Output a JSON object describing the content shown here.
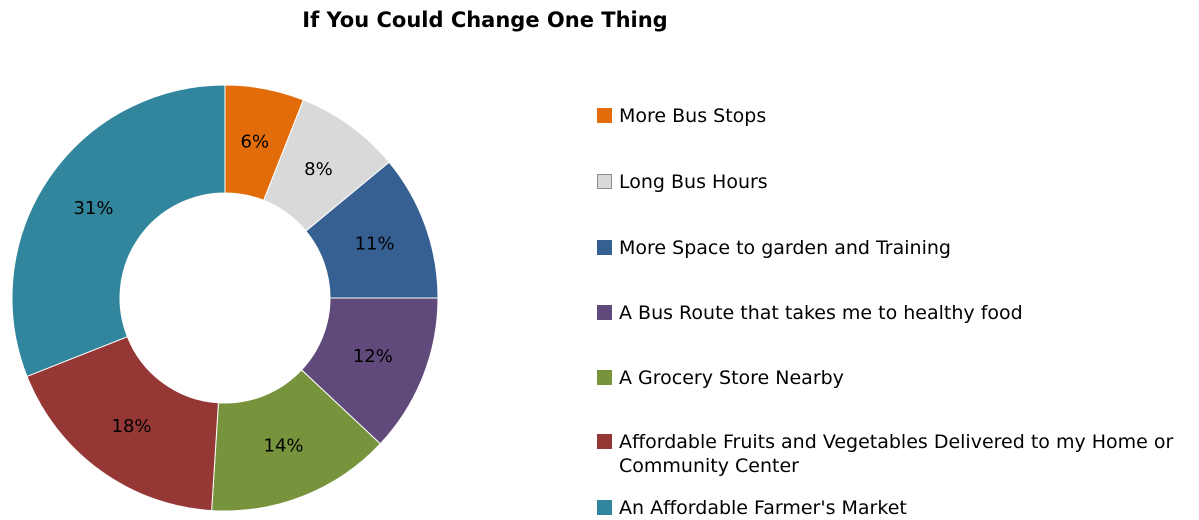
{
  "chart_data": {
    "type": "donut",
    "title": "If You Could Change One Thing",
    "categories": [
      "More Bus Stops",
      "Long Bus Hours",
      "More Space to garden and Training",
      "A Bus Route that takes me to healthy food",
      "A Grocery Store Nearby",
      "Affordable Fruits and Vegetables Delivered to my Home or Community Center",
      "An Affordable Farmer's Market"
    ],
    "values": [
      6,
      8,
      11,
      12,
      14,
      18,
      31
    ],
    "data_labels": [
      "6%",
      "8%",
      "11%",
      "12%",
      "14%",
      "18%",
      "31%"
    ],
    "colors": [
      "#e36c0a",
      "#d9d9d9",
      "#366092",
      "#604a7b",
      "#77933c",
      "#953735",
      "#31859c"
    ],
    "legend_position": "right"
  }
}
